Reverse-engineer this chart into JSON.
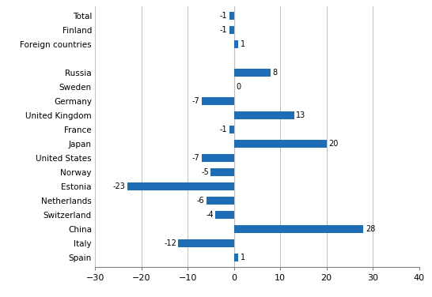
{
  "categories": [
    "Total",
    "Finland",
    "Foreign countries",
    "",
    "Russia",
    "Sweden",
    "Germany",
    "United Kingdom",
    "France",
    "Japan",
    "United States",
    "Norway",
    "Estonia",
    "Netherlands",
    "Switzerland",
    "China",
    "Italy",
    "Spain"
  ],
  "values": [
    -1,
    -1,
    1,
    null,
    8,
    0,
    -7,
    13,
    -1,
    20,
    -7,
    -5,
    -23,
    -6,
    -4,
    28,
    -12,
    1
  ],
  "bar_color": "#1f6eb5",
  "xlim": [
    -30,
    40
  ],
  "xticks": [
    -30,
    -20,
    -10,
    0,
    10,
    20,
    30,
    40
  ],
  "figsize": [
    5.46,
    3.76
  ],
  "dpi": 100
}
